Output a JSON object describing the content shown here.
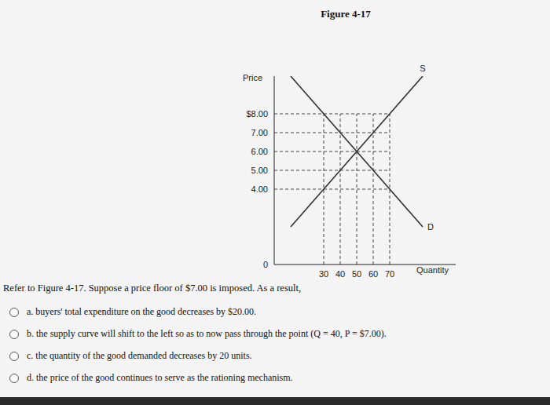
{
  "figure_title": "Figure 4-17",
  "chart_data": {
    "type": "line",
    "x_label": "Quantity",
    "y_label": "Price",
    "x": [
      10,
      90
    ],
    "xlim": [
      0,
      110
    ],
    "ylim": [
      0,
      10
    ],
    "xticks": [
      30,
      40,
      50,
      60,
      70
    ],
    "yticks": [
      {
        "value": 0,
        "label": "0"
      },
      {
        "value": 4,
        "label": "4.00"
      },
      {
        "value": 5,
        "label": "5.00"
      },
      {
        "value": 6,
        "label": "6.00"
      },
      {
        "value": 7,
        "label": "7.00"
      },
      {
        "value": 8,
        "label": "$8.00"
      }
    ],
    "grid": true,
    "series": [
      {
        "name": "S",
        "color": "#333333",
        "values": [
          2,
          10
        ]
      },
      {
        "name": "D",
        "color": "#333333",
        "values": [
          10,
          2
        ]
      }
    ]
  },
  "question": "Refer to Figure 4-17. Suppose a price floor of $7.00 is imposed. As a result,",
  "options": [
    "a. buyers' total expenditure on the good decreases by $20.00.",
    "b. the supply curve will shift to the left so as to now pass through the point (Q = 40, P = $7.00).",
    "c. the quantity of the good demanded decreases by 20 units.",
    "d. the price of the good continues to serve as the rationing mechanism."
  ]
}
